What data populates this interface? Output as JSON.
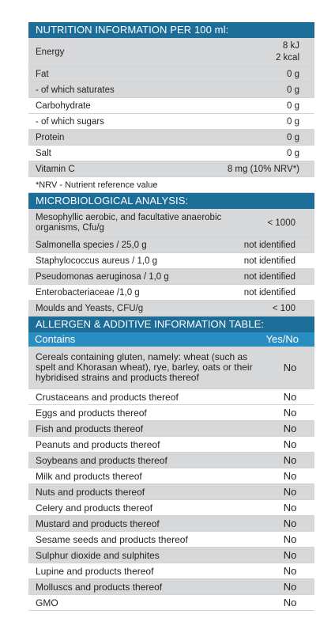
{
  "nutrition": {
    "title": "NUTRITION INFORMATION PER 100 ml:",
    "rows": [
      {
        "label": "Energy",
        "value": "8 kJ\n2 kcal"
      },
      {
        "label": "Fat",
        "value": "0 g"
      },
      {
        "label": " - of which saturates",
        "value": "0 g"
      },
      {
        "label": "Carbohydrate",
        "value": "0 g"
      },
      {
        "label": " - of which sugars",
        "value": "0 g"
      },
      {
        "label": "Protein",
        "value": "0 g"
      },
      {
        "label": "Salt",
        "value": "0 g"
      },
      {
        "label": "Vitamin C",
        "value": "8 mg (10% NRV*)"
      }
    ],
    "footnote": "*NRV - Nutrient reference value"
  },
  "micro": {
    "title": "MICROBIOLOGICAL ANALYSIS:",
    "rows": [
      {
        "label": "Mesophyllic aerobic, and facultative anaerobic organisms, Cfu/g",
        "value": "< 1000"
      },
      {
        "label": "Salmonella species / 25,0 g",
        "value": "not identified"
      },
      {
        "label": "Staphylococcus aureus / 1,0 g",
        "value": "not identified"
      },
      {
        "label": "Pseudomonas aeruginosa / 1,0 g",
        "value": "not identified"
      },
      {
        "label": "Enterobacteriaceae /1,0 g",
        "value": "not identified"
      },
      {
        "label": "Moulds and Yeasts, CFU/g",
        "value": "< 100"
      }
    ]
  },
  "allergen": {
    "title": "ALLERGEN & ADDITIVE INFORMATION TABLE:",
    "col_contains": "Contains",
    "col_yesno": "Yes/No",
    "rows": [
      {
        "label": "Cereals containing  gluten, namely: wheat (such as spelt and Khorasan wheat), rye,  barley,  oats or their hybridised strains and products thereof",
        "value": "No"
      },
      {
        "label": "Crustaceans and products thereof",
        "value": "No"
      },
      {
        "label": "Eggs and products thereof",
        "value": "No"
      },
      {
        "label": "Fish and products thereof",
        "value": "No"
      },
      {
        "label": "Peanuts and products thereof",
        "value": "No"
      },
      {
        "label": "Soybeans and products thereof",
        "value": "No"
      },
      {
        "label": "Milk and products thereof",
        "value": "No"
      },
      {
        "label": "Nuts and products thereof",
        "value": "No"
      },
      {
        "label": "Celery and products thereof",
        "value": "No"
      },
      {
        "label": "Mustard and products thereof",
        "value": "No"
      },
      {
        "label": "Sesame seeds and products thereof",
        "value": "No"
      },
      {
        "label": "Sulphur dioxide and sulphites",
        "value": "No"
      },
      {
        "label": "Lupine and products thereof",
        "value": "No"
      },
      {
        "label": "Molluscs and products thereof",
        "value": "No"
      },
      {
        "label": "GMO",
        "value": "No"
      }
    ]
  }
}
